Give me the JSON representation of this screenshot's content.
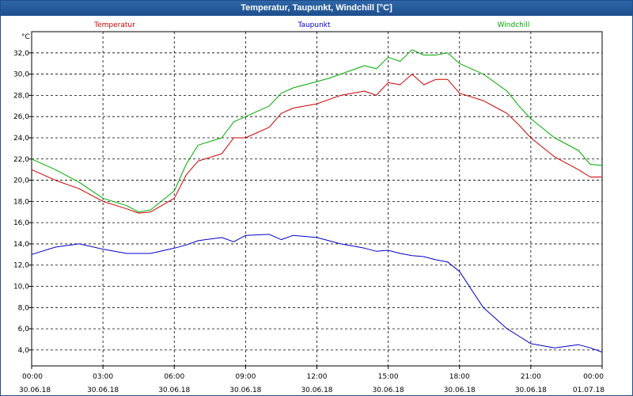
{
  "window": {
    "title": "Temperatur, Taupunkt, Windchill [°C]"
  },
  "colors": {
    "temperatur": "#cc0000",
    "taupunkt": "#0000cc",
    "windchill": "#00aa00",
    "grid": "#000000",
    "titlebar": "#24589a"
  },
  "chart_data": {
    "type": "line",
    "title": "Temperatur, Taupunkt, Windchill [°C]",
    "ylabel": "°C",
    "xlabel": "",
    "ylim": [
      2.5,
      34.0
    ],
    "xlim": [
      "30.06.18 00:00",
      "01.07.18 00:00"
    ],
    "grid": true,
    "legend_placement": "top",
    "y_ticks": [
      "4,0",
      "6,0",
      "8,0",
      "10,0",
      "12,0",
      "14,0",
      "16,0",
      "18,0",
      "20,0",
      "22,0",
      "24,0",
      "26,0",
      "28,0",
      "30,0",
      "32,0"
    ],
    "x_ticks": [
      {
        "time": "00:00",
        "date": "30.06.18"
      },
      {
        "time": "03:00",
        "date": "30.06.18"
      },
      {
        "time": "06:00",
        "date": "30.06.18"
      },
      {
        "time": "09:00",
        "date": "30.06.18"
      },
      {
        "time": "12:00",
        "date": "30.06.18"
      },
      {
        "time": "15:00",
        "date": "30.06.18"
      },
      {
        "time": "18:00",
        "date": "30.06.18"
      },
      {
        "time": "21:00",
        "date": "30.06.18"
      },
      {
        "time": "00:00",
        "date": "01.07.18"
      }
    ],
    "x": [
      "00:00",
      "01:00",
      "02:00",
      "03:00",
      "04:00",
      "04:30",
      "05:00",
      "06:00",
      "06:30",
      "07:00",
      "08:00",
      "08:30",
      "09:00",
      "10:00",
      "10:30",
      "11:00",
      "12:00",
      "12:30",
      "13:00",
      "14:00",
      "14:30",
      "15:00",
      "15:30",
      "16:00",
      "16:30",
      "17:00",
      "17:30",
      "18:00",
      "19:00",
      "20:00",
      "20:30",
      "21:00",
      "22:00",
      "23:00",
      "23:30",
      "24:00"
    ],
    "series": [
      {
        "name": "Temperatur",
        "color": "#cc0000",
        "values": [
          21.0,
          20.0,
          19.2,
          18.0,
          17.3,
          16.9,
          17.0,
          18.3,
          20.5,
          21.8,
          22.5,
          24.0,
          24.0,
          25.0,
          26.3,
          26.8,
          27.2,
          27.6,
          28.0,
          28.4,
          28.0,
          29.2,
          29.0,
          30.0,
          29.0,
          29.5,
          29.5,
          28.2,
          27.5,
          26.3,
          25.2,
          24.0,
          22.2,
          21.0,
          20.3,
          20.3
        ]
      },
      {
        "name": "Taupunkt",
        "color": "#0000cc",
        "values": [
          13.0,
          13.7,
          14.0,
          13.5,
          13.1,
          13.1,
          13.1,
          13.6,
          13.9,
          14.3,
          14.6,
          14.2,
          14.8,
          14.9,
          14.4,
          14.8,
          14.6,
          14.3,
          14.0,
          13.6,
          13.3,
          13.4,
          13.1,
          12.9,
          12.8,
          12.5,
          12.3,
          11.4,
          8.0,
          6.0,
          5.3,
          4.6,
          4.2,
          4.5,
          4.2,
          3.8
        ]
      },
      {
        "name": "Windchill",
        "color": "#00aa00",
        "values": [
          22.0,
          21.0,
          19.8,
          18.3,
          17.6,
          17.0,
          17.2,
          19.0,
          21.5,
          23.3,
          24.0,
          25.5,
          26.0,
          27.0,
          28.2,
          28.7,
          29.3,
          29.6,
          30.0,
          30.8,
          30.5,
          31.6,
          31.2,
          32.3,
          31.8,
          31.8,
          32.0,
          31.0,
          30.0,
          28.4,
          27.0,
          25.8,
          24.0,
          22.8,
          21.5,
          21.4
        ]
      }
    ]
  }
}
